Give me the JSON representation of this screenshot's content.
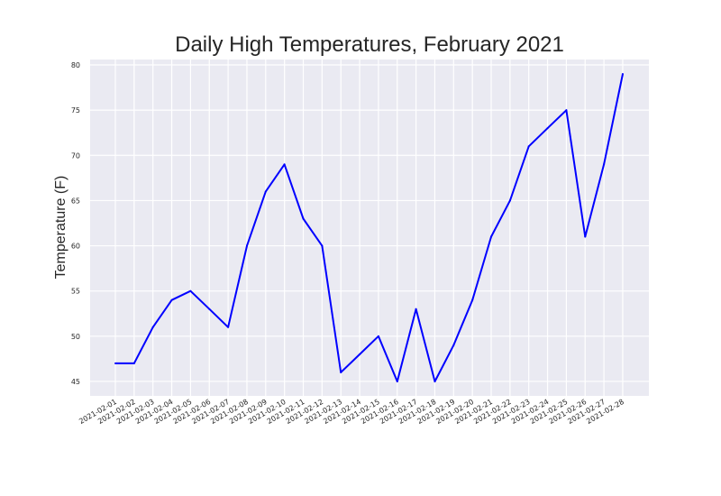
{
  "chart_data": {
    "type": "line",
    "title": "Daily High Temperatures, February 2021",
    "xlabel": "",
    "ylabel": "Temperature (F)",
    "x": [
      "2021-02-01",
      "2021-02-02",
      "2021-02-03",
      "2021-02-04",
      "2021-02-05",
      "2021-02-06",
      "2021-02-07",
      "2021-02-08",
      "2021-02-09",
      "2021-02-10",
      "2021-02-11",
      "2021-02-12",
      "2021-02-13",
      "2021-02-14",
      "2021-02-15",
      "2021-02-16",
      "2021-02-17",
      "2021-02-18",
      "2021-02-19",
      "2021-02-20",
      "2021-02-21",
      "2021-02-22",
      "2021-02-23",
      "2021-02-24",
      "2021-02-25",
      "2021-02-26",
      "2021-02-27",
      "2021-02-28"
    ],
    "series": [
      {
        "values": [
          47,
          47,
          51,
          54,
          55,
          53,
          51,
          60,
          66,
          69,
          63,
          60,
          46,
          48,
          50,
          45,
          53,
          45,
          49,
          54,
          61,
          65,
          71,
          73,
          75,
          61,
          69,
          79
        ]
      }
    ],
    "ylim": [
      43.4,
      80.6
    ],
    "yticks": [
      45,
      50,
      55,
      60,
      65,
      70,
      75,
      80
    ],
    "grid": true,
    "colors": {
      "line": "#0000ff",
      "plot_background": "#eaeaf2",
      "grid": "#ffffff"
    }
  }
}
